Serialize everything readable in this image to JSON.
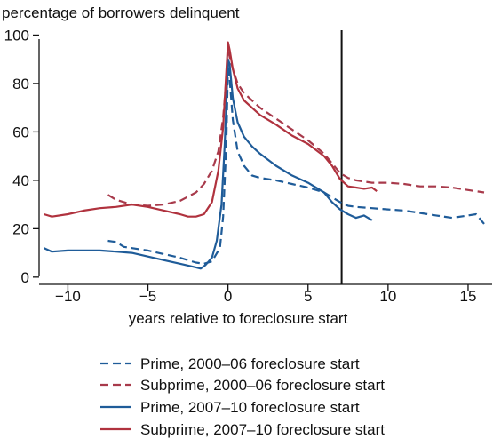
{
  "chart_data": {
    "type": "line",
    "title": "",
    "ylabel": "percentage of borrowers delinquent",
    "xlabel": "years relative to foreclosure start",
    "xlim": [
      -11.8,
      16.5
    ],
    "ylim": [
      -3,
      102
    ],
    "x_ticks": [
      -10,
      -5,
      0,
      5,
      10,
      15
    ],
    "x_tick_labels": [
      "−10",
      "−5",
      "0",
      "5",
      "10",
      "15"
    ],
    "y_ticks": [
      0,
      20,
      40,
      60,
      80,
      100
    ],
    "y_tick_labels": [
      "0",
      "20",
      "40",
      "60",
      "80",
      "100"
    ],
    "grid": false,
    "legend_position": "bottom",
    "reference_line": {
      "x": 7.1
    },
    "series": [
      {
        "name": "Prime, 2000–06 foreclosure start",
        "color": "#1f5c99",
        "dash": true,
        "points": [
          [
            -7.5,
            15
          ],
          [
            -7,
            14.5
          ],
          [
            -6.5,
            12.5
          ],
          [
            -5,
            11
          ],
          [
            -4,
            9.5
          ],
          [
            -3,
            8
          ],
          [
            -2.5,
            7
          ],
          [
            -2,
            6
          ],
          [
            -1.5,
            5.5
          ],
          [
            -1,
            6.5
          ],
          [
            -0.5,
            12
          ],
          [
            -0.3,
            25
          ],
          [
            -0.1,
            55
          ],
          [
            0,
            88
          ],
          [
            0.1,
            82
          ],
          [
            0.3,
            65
          ],
          [
            0.6,
            52
          ],
          [
            1,
            46
          ],
          [
            1.5,
            42
          ],
          [
            2,
            41
          ],
          [
            3,
            40
          ],
          [
            4,
            38.5
          ],
          [
            5,
            37
          ],
          [
            6,
            35
          ],
          [
            6.5,
            33
          ],
          [
            7,
            31
          ],
          [
            7.5,
            29.5
          ],
          [
            8,
            29
          ],
          [
            9,
            28.5
          ],
          [
            10,
            28
          ],
          [
            11,
            27.5
          ],
          [
            12,
            26.5
          ],
          [
            13,
            25.5
          ],
          [
            14,
            24.5
          ],
          [
            15,
            25.5
          ],
          [
            15.5,
            26
          ],
          [
            16,
            22
          ]
        ]
      },
      {
        "name": "Subprime, 2000–06 foreclosure start",
        "color": "#a83a4b",
        "dash": true,
        "points": [
          [
            -7.5,
            34
          ],
          [
            -7,
            32
          ],
          [
            -6,
            30
          ],
          [
            -5,
            29.5
          ],
          [
            -4,
            30
          ],
          [
            -3,
            31.5
          ],
          [
            -2,
            35
          ],
          [
            -1.5,
            38.5
          ],
          [
            -1,
            44
          ],
          [
            -0.6,
            52
          ],
          [
            -0.3,
            66
          ],
          [
            -0.1,
            82
          ],
          [
            0,
            95
          ],
          [
            0.1,
            91
          ],
          [
            0.3,
            86
          ],
          [
            0.6,
            80
          ],
          [
            1,
            76
          ],
          [
            1.5,
            73
          ],
          [
            2,
            70
          ],
          [
            3,
            65.5
          ],
          [
            4,
            61
          ],
          [
            5,
            56.5
          ],
          [
            6,
            51
          ],
          [
            7,
            43
          ],
          [
            7.5,
            41
          ],
          [
            8,
            40
          ],
          [
            9,
            39
          ],
          [
            10,
            39
          ],
          [
            11,
            38.5
          ],
          [
            12,
            37.5
          ],
          [
            13,
            37.5
          ],
          [
            14,
            37
          ],
          [
            15,
            36
          ],
          [
            16,
            35
          ]
        ]
      },
      {
        "name": "Prime, 2007–10 foreclosure start",
        "color": "#1f5c99",
        "dash": false,
        "points": [
          [
            -11.5,
            12
          ],
          [
            -11,
            10.5
          ],
          [
            -10,
            11
          ],
          [
            -9,
            11
          ],
          [
            -8,
            11
          ],
          [
            -7,
            10.5
          ],
          [
            -6,
            10
          ],
          [
            -5,
            8.5
          ],
          [
            -4,
            7
          ],
          [
            -3,
            5.5
          ],
          [
            -2,
            4
          ],
          [
            -1.7,
            3.5
          ],
          [
            -1.4,
            5
          ],
          [
            -1,
            8
          ],
          [
            -0.7,
            15
          ],
          [
            -0.4,
            30
          ],
          [
            -0.2,
            55
          ],
          [
            0,
            90
          ],
          [
            0.1,
            88
          ],
          [
            0.3,
            74
          ],
          [
            0.6,
            64
          ],
          [
            1,
            58
          ],
          [
            1.5,
            54
          ],
          [
            2,
            51
          ],
          [
            3,
            46
          ],
          [
            4,
            42
          ],
          [
            5,
            39
          ],
          [
            6,
            35
          ],
          [
            6.5,
            31
          ],
          [
            7,
            28
          ],
          [
            7.5,
            26
          ],
          [
            8,
            24.5
          ],
          [
            8.5,
            25.5
          ],
          [
            9,
            23.5
          ]
        ]
      },
      {
        "name": "Subprime, 2007–10 foreclosure start",
        "color": "#b0323e",
        "dash": false,
        "points": [
          [
            -11.5,
            26
          ],
          [
            -11,
            25
          ],
          [
            -10,
            26
          ],
          [
            -9,
            27.5
          ],
          [
            -8,
            28.5
          ],
          [
            -7,
            29
          ],
          [
            -6,
            30
          ],
          [
            -5,
            29
          ],
          [
            -4,
            27.5
          ],
          [
            -3,
            26
          ],
          [
            -2.5,
            25
          ],
          [
            -2,
            25
          ],
          [
            -1.5,
            26
          ],
          [
            -1,
            31
          ],
          [
            -0.6,
            44
          ],
          [
            -0.3,
            62
          ],
          [
            -0.1,
            85
          ],
          [
            0,
            97
          ],
          [
            0.1,
            94
          ],
          [
            0.3,
            86
          ],
          [
            0.6,
            78
          ],
          [
            1,
            73
          ],
          [
            1.5,
            70
          ],
          [
            2,
            67
          ],
          [
            3,
            63
          ],
          [
            4,
            58.5
          ],
          [
            5,
            55
          ],
          [
            6,
            50
          ],
          [
            6.5,
            46
          ],
          [
            7,
            40.5
          ],
          [
            7.5,
            37.5
          ],
          [
            8,
            37
          ],
          [
            8.5,
            36.5
          ],
          [
            9,
            37
          ],
          [
            9.3,
            35.5
          ]
        ]
      }
    ]
  }
}
